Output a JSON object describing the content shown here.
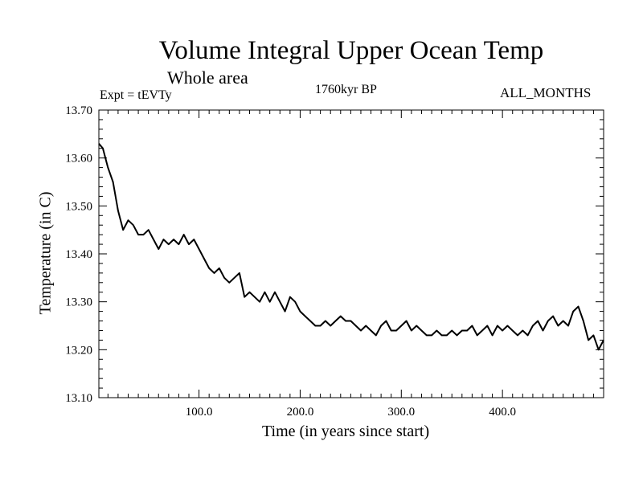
{
  "chart_data": {
    "type": "line",
    "title": "Volume Integral Upper Ocean Temp",
    "subtitle": "Whole area",
    "experiment_label": "Expt = tEVTy",
    "period_label": "1760kyr BP",
    "months_label": "ALL_MONTHS",
    "xlabel": "Time (in years since start)",
    "ylabel": "Temperature (in C)",
    "xlim": [
      1,
      500
    ],
    "ylim": [
      13.1,
      13.7
    ],
    "xticks": [
      100,
      200,
      300,
      400
    ],
    "xtick_labels": [
      "100.0",
      "200.0",
      "300.0",
      "400.0"
    ],
    "yticks": [
      13.1,
      13.2,
      13.3,
      13.4,
      13.5,
      13.6,
      13.7
    ],
    "ytick_labels": [
      "13.10",
      "13.20",
      "13.30",
      "13.40",
      "13.50",
      "13.60",
      "13.70"
    ],
    "line_color": "#000000",
    "series": [
      {
        "name": "Volume Integral Upper Ocean Temp",
        "x": [
          1,
          5,
          10,
          15,
          20,
          25,
          30,
          35,
          40,
          45,
          50,
          55,
          60,
          65,
          70,
          75,
          80,
          85,
          90,
          95,
          100,
          105,
          110,
          115,
          120,
          125,
          130,
          135,
          140,
          145,
          150,
          155,
          160,
          165,
          170,
          175,
          180,
          185,
          190,
          195,
          200,
          205,
          210,
          215,
          220,
          225,
          230,
          235,
          240,
          245,
          250,
          255,
          260,
          265,
          270,
          275,
          280,
          285,
          290,
          295,
          300,
          305,
          310,
          315,
          320,
          325,
          330,
          335,
          340,
          345,
          350,
          355,
          360,
          365,
          370,
          375,
          380,
          385,
          390,
          395,
          400,
          405,
          410,
          415,
          420,
          425,
          430,
          435,
          440,
          445,
          450,
          455,
          460,
          465,
          470,
          475,
          480,
          485,
          490,
          495,
          500
        ],
        "values": [
          13.63,
          13.62,
          13.58,
          13.55,
          13.49,
          13.45,
          13.47,
          13.46,
          13.44,
          13.44,
          13.45,
          13.43,
          13.41,
          13.43,
          13.42,
          13.43,
          13.42,
          13.44,
          13.42,
          13.43,
          13.41,
          13.39,
          13.37,
          13.36,
          13.37,
          13.35,
          13.34,
          13.35,
          13.36,
          13.31,
          13.32,
          13.31,
          13.3,
          13.32,
          13.3,
          13.32,
          13.3,
          13.28,
          13.31,
          13.3,
          13.28,
          13.27,
          13.26,
          13.25,
          13.25,
          13.26,
          13.25,
          13.26,
          13.27,
          13.26,
          13.26,
          13.25,
          13.24,
          13.25,
          13.24,
          13.23,
          13.25,
          13.26,
          13.24,
          13.24,
          13.25,
          13.26,
          13.24,
          13.25,
          13.24,
          13.23,
          13.23,
          13.24,
          13.23,
          13.23,
          13.24,
          13.23,
          13.24,
          13.24,
          13.25,
          13.23,
          13.24,
          13.25,
          13.23,
          13.25,
          13.24,
          13.25,
          13.24,
          13.23,
          13.24,
          13.23,
          13.25,
          13.26,
          13.24,
          13.26,
          13.27,
          13.25,
          13.26,
          13.25,
          13.28,
          13.29,
          13.26,
          13.22,
          13.23,
          13.2,
          13.22
        ]
      }
    ]
  }
}
